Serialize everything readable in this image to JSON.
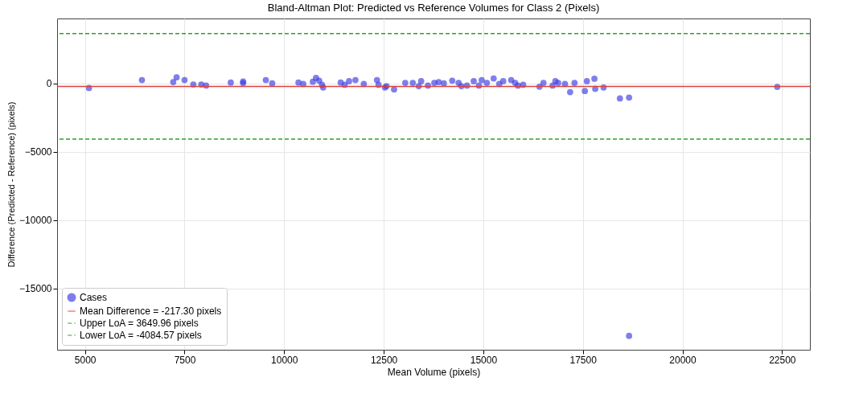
{
  "chart_data": {
    "type": "scatter",
    "title": "Bland-Altman Plot: Predicted vs Reference Volumes for Class 2 (Pixels)",
    "xlabel": "Mean Volume (pixels)",
    "ylabel": "Difference (Predicted - Reference) (pixels)",
    "series": [
      {
        "name": "Cases",
        "color": "#3a3ae0",
        "x": [
          5100,
          6430,
          7215,
          7300,
          7500,
          7720,
          7920,
          8040,
          8660,
          8970,
          8970,
          9540,
          9700,
          10360,
          10480,
          10720,
          10800,
          10880,
          10950,
          10980,
          11420,
          11520,
          11630,
          11790,
          12000,
          12330,
          12370,
          12530,
          12570,
          12760,
          13040,
          13230,
          13380,
          13440,
          13610,
          13770,
          13880,
          14010,
          14220,
          14380,
          14450,
          14590,
          14760,
          14890,
          14960,
          15090,
          15260,
          15400,
          15500,
          15700,
          15800,
          15870,
          16000,
          16410,
          16510,
          16740,
          16810,
          16880,
          17050,
          17180,
          17290,
          17550,
          17600,
          17790,
          17810,
          18020,
          18430,
          18660,
          18660,
          22380
        ],
        "values": [
          -340,
          240,
          100,
          440,
          240,
          -80,
          -80,
          -160,
          60,
          140,
          20,
          240,
          0,
          60,
          -40,
          120,
          400,
          200,
          -100,
          -300,
          60,
          -100,
          160,
          240,
          -40,
          240,
          -100,
          -300,
          -200,
          -440,
          40,
          40,
          -200,
          160,
          -160,
          40,
          100,
          0,
          200,
          40,
          -200,
          -160,
          160,
          -160,
          240,
          40,
          360,
          -40,
          160,
          240,
          40,
          -160,
          -100,
          -240,
          40,
          -160,
          160,
          40,
          -40,
          -640,
          40,
          -560,
          160,
          340,
          -400,
          -300,
          -1100,
          -1040,
          -18480,
          -260
        ]
      }
    ],
    "ref_lines": [
      {
        "axis": "y",
        "value": -217.3,
        "label": "Mean Difference = -217.30 pixels",
        "color": "#e0403c",
        "line_style": "solid"
      },
      {
        "axis": "y",
        "value": 3649.96,
        "label": "Upper LoA = 3649.96 pixels",
        "color": "#2ca02c",
        "line_style": "dashed"
      },
      {
        "axis": "y",
        "value": -4084.57,
        "label": "Lower LoA = -4084.57 pixels",
        "color": "#2ca02c",
        "line_style": "dashed"
      }
    ],
    "xlim": [
      4300,
      23200
    ],
    "ylim": [
      -19500,
      4750
    ],
    "xticks": [
      5000,
      7500,
      10000,
      12500,
      15000,
      17500,
      20000,
      22500
    ],
    "yticks": [
      -15000,
      -10000,
      -5000,
      0
    ],
    "grid": true,
    "legend": "bottom left",
    "marker": "circle"
  }
}
